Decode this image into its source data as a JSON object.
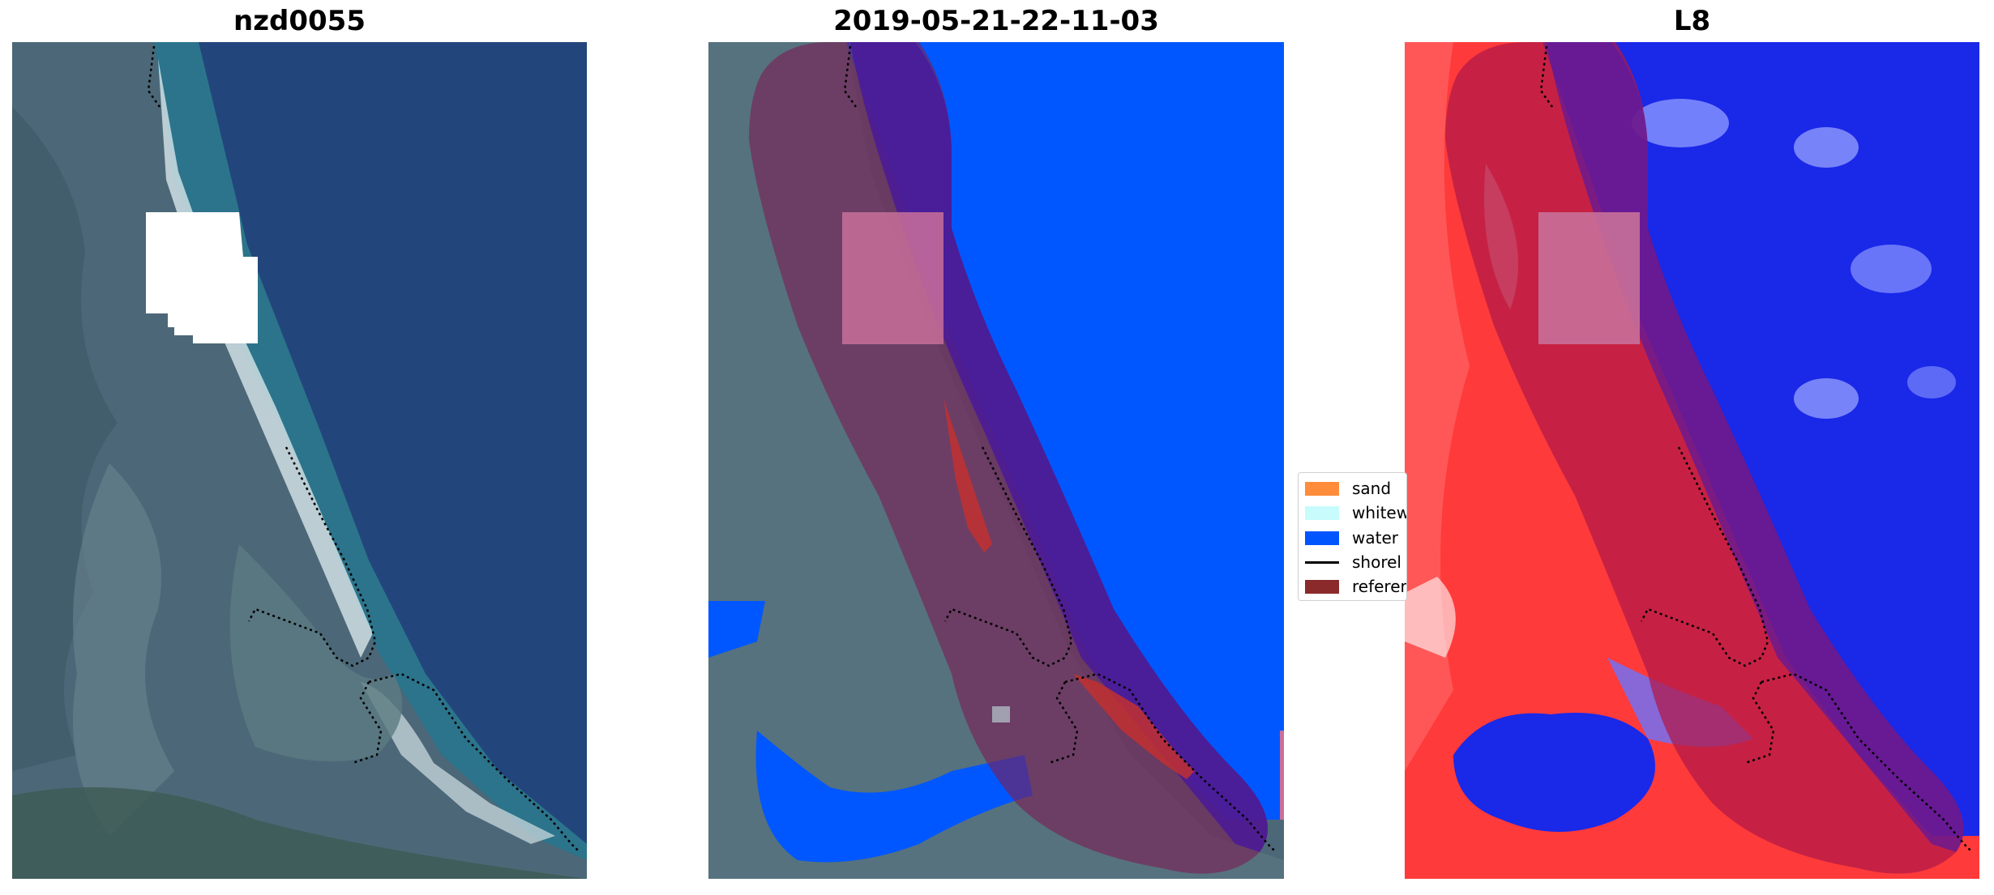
{
  "panels": {
    "left": {
      "title": "nzd0055"
    },
    "middle": {
      "title": "2019-05-21-22-11-03"
    },
    "right": {
      "title": "L8"
    }
  },
  "legend": {
    "items": [
      {
        "label": "sand",
        "color": "#ff8c3a"
      },
      {
        "label": "whitew",
        "color": "#c8fcfc"
      },
      {
        "label": "water",
        "color": "#0055ff"
      },
      {
        "label": "shorel",
        "color": "#000000"
      },
      {
        "label": "referer",
        "color": "#8b2a2a"
      }
    ]
  },
  "colors": {
    "imagery_water": "#22467c",
    "imagery_land": "#4f6a78",
    "class_water": "#0057ff",
    "buffer_overlay": "#8b2a2a",
    "cloud_mask": "#ffffff",
    "index_positive": "#ff3030",
    "index_negative": "#1a28e8"
  }
}
